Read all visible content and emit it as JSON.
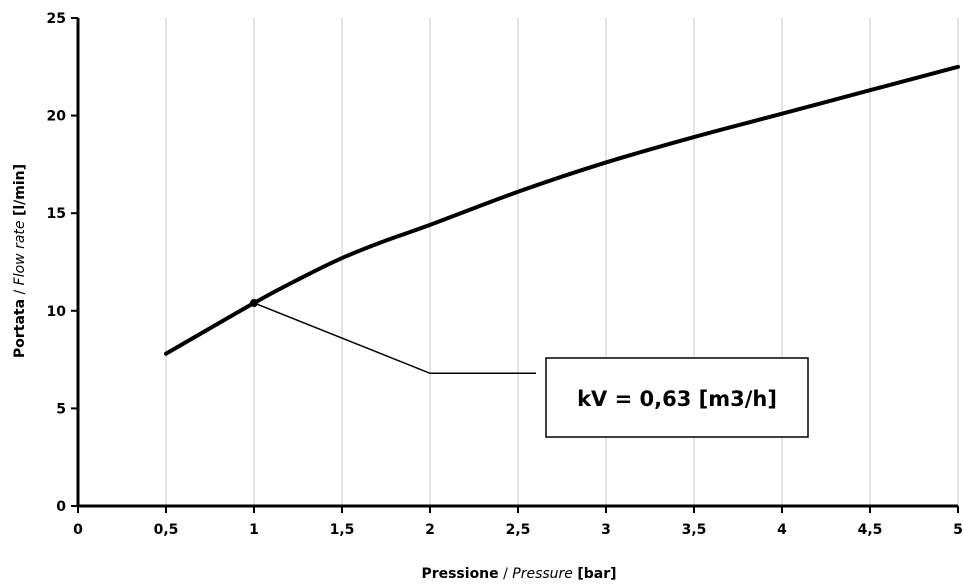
{
  "chart_data": {
    "type": "line",
    "title": "",
    "xlabel": {
      "bold": "Pressione",
      "sep": " / ",
      "italic": "Pressure",
      "unit": "[bar]"
    },
    "ylabel": {
      "bold": "Portata",
      "sep": " / ",
      "italic": "Flow rate",
      "unit": "[l/min]"
    },
    "xlim": [
      0,
      5
    ],
    "ylim": [
      0,
      25
    ],
    "x_ticks": [
      0,
      0.5,
      1,
      1.5,
      2,
      2.5,
      3,
      3.5,
      4,
      4.5,
      5
    ],
    "x_tick_labels": [
      "0",
      "0,5",
      "1",
      "1,5",
      "2",
      "2,5",
      "3",
      "3,5",
      "4",
      "4,5",
      "5"
    ],
    "y_ticks": [
      0,
      5,
      10,
      15,
      20,
      25
    ],
    "y_tick_labels": [
      "0",
      "5",
      "10",
      "15",
      "20",
      "25"
    ],
    "grid": {
      "vertical": true,
      "horizontal": false
    },
    "series": [
      {
        "x": [
          0.5,
          1.0,
          1.25,
          1.5,
          1.75,
          2.0,
          2.5,
          3.0,
          3.5,
          4.0,
          4.5,
          5.0
        ],
        "y": [
          7.8,
          10.4,
          11.6,
          12.7,
          13.6,
          14.4,
          16.1,
          17.6,
          18.9,
          20.1,
          21.3,
          22.5
        ]
      }
    ],
    "annotation": {
      "text": "kV = 0,63 [m3/h]",
      "point": {
        "x": 1,
        "y": 10.4
      },
      "elbow": {
        "x": 2,
        "y": 6.8
      }
    },
    "line_color": "#000000"
  }
}
